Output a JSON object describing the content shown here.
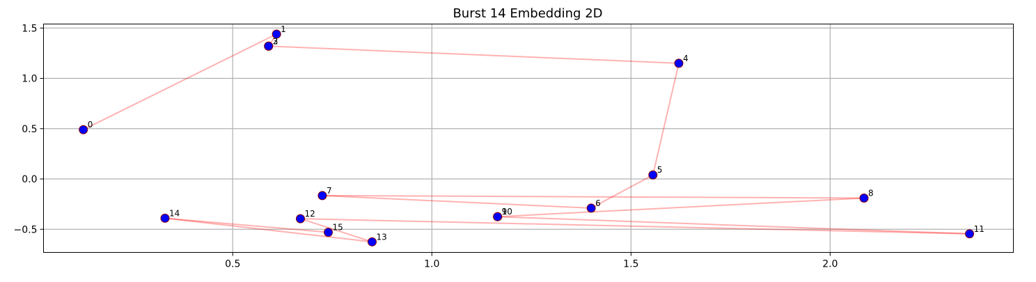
{
  "chart_data": {
    "type": "scatter",
    "title": "Burst 14 Embedding 2D",
    "xlabel": "",
    "ylabel": "",
    "xlim": [
      0.025,
      2.46
    ],
    "ylim": [
      -0.73,
      1.54
    ],
    "xticks": [
      0.5,
      1.0,
      1.5,
      2.0
    ],
    "xtick_labels": [
      "0.5",
      "1.0",
      "1.5",
      "2.0"
    ],
    "yticks": [
      -0.5,
      0.0,
      0.5,
      1.0,
      1.5
    ],
    "ytick_labels": [
      "−0.5",
      "0.0",
      "0.5",
      "1.0",
      "1.5"
    ],
    "grid": true,
    "point_color": "#0000ff",
    "point_edge_color": "#8b0000",
    "line_color": "#ff0000",
    "line_opacity": 0.3,
    "points": [
      {
        "label": "0",
        "x": 0.125,
        "y": 0.49
      },
      {
        "label": "1",
        "x": 0.61,
        "y": 1.44
      },
      {
        "label": "2",
        "x": 0.59,
        "y": 1.32
      },
      {
        "label": "3",
        "x": 0.59,
        "y": 1.32
      },
      {
        "label": "4",
        "x": 1.62,
        "y": 1.15
      },
      {
        "label": "5",
        "x": 1.555,
        "y": 0.04
      },
      {
        "label": "6",
        "x": 1.4,
        "y": -0.29
      },
      {
        "label": "7",
        "x": 0.725,
        "y": -0.165
      },
      {
        "label": "8",
        "x": 2.085,
        "y": -0.19
      },
      {
        "label": "9",
        "x": 1.165,
        "y": -0.375
      },
      {
        "label": "10",
        "x": 1.165,
        "y": -0.375
      },
      {
        "label": "11",
        "x": 2.35,
        "y": -0.545
      },
      {
        "label": "12",
        "x": 0.67,
        "y": -0.395
      },
      {
        "label": "13",
        "x": 0.85,
        "y": -0.625
      },
      {
        "label": "14",
        "x": 0.33,
        "y": -0.39
      },
      {
        "label": "15",
        "x": 0.74,
        "y": -0.53
      }
    ]
  }
}
